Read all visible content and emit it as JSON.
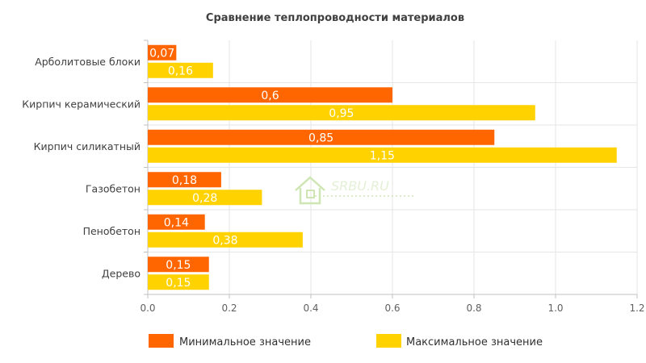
{
  "chart_data": {
    "type": "bar",
    "orientation": "horizontal",
    "title": "Сравнение теплопроводности материалов",
    "categories": [
      "Арболитовые блоки",
      "Кирпич керамический",
      "Кирпич силикатный",
      "Газобетон",
      "Пенобетон",
      "Дерево"
    ],
    "series": [
      {
        "name": "Минимальное значение",
        "color": "#ff6600",
        "values": [
          0.07,
          0.6,
          0.85,
          0.18,
          0.14,
          0.15
        ],
        "labels": [
          "0,07",
          "0,6",
          "0,85",
          "0,18",
          "0,14",
          "0,15"
        ]
      },
      {
        "name": "Максимальное значение",
        "color": "#ffd200",
        "values": [
          0.16,
          0.95,
          1.15,
          0.28,
          0.38,
          0.15
        ],
        "labels": [
          "0,16",
          "0,95",
          "1,15",
          "0,28",
          "0,38",
          "0,15"
        ]
      }
    ],
    "xlim": [
      0,
      1.2
    ],
    "xticks": [
      "0.0",
      "0.2",
      "0.4",
      "0.6",
      "0.8",
      "1.0",
      "1.2"
    ],
    "grid": true,
    "legend_position": "bottom"
  },
  "watermark": {
    "text": "SRBU.RU"
  }
}
